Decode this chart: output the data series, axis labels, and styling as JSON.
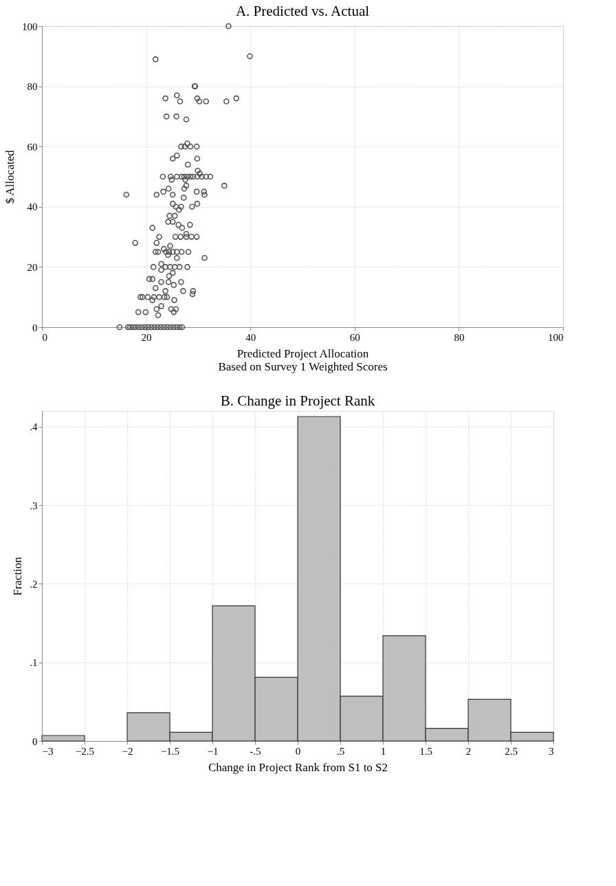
{
  "chart_data": [
    {
      "type": "scatter",
      "title": "A. Predicted vs. Actual",
      "xlabel": "Predicted Project Allocation\nBased on Survey 1 Weighted Scores",
      "ylabel": "$ Allocated",
      "marker": "circle",
      "grid": true,
      "xlim": [
        0,
        100
      ],
      "xticks": [
        0,
        20,
        40,
        60,
        80,
        100
      ],
      "ylim": [
        0,
        100
      ],
      "yticks": [
        0,
        20,
        40,
        60,
        80,
        100
      ],
      "series": [
        {
          "color": "#555555",
          "x": [
            35.8,
            21.8,
            39.9,
            29.3,
            29.4,
            23.7,
            25.9,
            26.5,
            29.8,
            30.2,
            31.5,
            35.4,
            37.3,
            23.9,
            25.8,
            27.7,
            26.7,
            27.4,
            28.5,
            29.7,
            27.9,
            25.1,
            25.9,
            29.8,
            28.0,
            29.9,
            30.3,
            23.2,
            24.7,
            25.9,
            26.8,
            27.3,
            27.9,
            28.5,
            29.0,
            29.8,
            30.7,
            31.5,
            32.3,
            24.9,
            27.5,
            35.0,
            27.7,
            27.3,
            24.3,
            23.3,
            29.7,
            31.1,
            16.2,
            22.0,
            25.1,
            31.2,
            27.2,
            25.1,
            25.7,
            26.7,
            26.3,
            28.8,
            29.8,
            24.5,
            25.5,
            24.2,
            25.1,
            26.2,
            26.9,
            21.2,
            28.4,
            27.7,
            22.5,
            25.6,
            26.6,
            27.7,
            28.7,
            29.7,
            17.9,
            22.0,
            23.4,
            24.6,
            21.8,
            22.3,
            23.8,
            24.4,
            25.1,
            25.9,
            26.8,
            28.1,
            31.2,
            24.2,
            25.9,
            22.9,
            21.4,
            23.7,
            24.6,
            25.5,
            26.4,
            27.9,
            22.9,
            25.1,
            20.6,
            21.2,
            24.4,
            22.9,
            24.3,
            25.3,
            26.7,
            21.8,
            23.7,
            27.1,
            29.0,
            28.9,
            18.9,
            19.3,
            20.3,
            21.5,
            22.5,
            23.5,
            24.0,
            21.2,
            25.4,
            22.9,
            22.0,
            24.8,
            25.7,
            25.3,
            18.5,
            19.9,
            22.3,
            14.9,
            16.5,
            16.9,
            17.5,
            18.0,
            18.6,
            19.2,
            19.8,
            20.4,
            21.0,
            21.6,
            22.2,
            22.8,
            23.4,
            24.0,
            24.6,
            25.2,
            25.8,
            26.4,
            26.9
          ],
          "values": [
            100,
            89,
            90,
            80,
            80,
            76,
            77,
            75,
            76,
            75,
            75,
            75,
            76,
            70,
            70,
            69,
            60,
            60,
            60,
            60,
            61,
            56,
            57,
            56,
            54,
            52,
            51,
            50,
            50,
            50,
            50,
            50,
            50,
            50,
            50,
            50,
            50,
            50,
            50,
            49,
            49,
            47,
            47,
            46,
            46,
            45,
            45,
            45,
            44,
            44,
            44,
            44,
            43,
            41,
            40,
            40,
            39,
            40,
            41,
            37,
            37,
            35,
            35,
            34,
            33,
            33,
            34,
            31,
            30,
            30,
            30,
            30,
            30,
            30,
            28,
            28,
            26,
            27,
            25,
            25,
            25,
            25,
            25,
            25,
            25,
            25,
            23,
            24,
            23,
            21,
            20,
            20,
            20,
            20,
            20,
            20,
            19,
            18,
            16,
            16,
            17,
            15,
            15,
            14,
            15,
            13,
            12,
            12,
            12,
            11,
            10,
            10,
            10,
            10,
            10,
            10,
            10,
            9,
            9,
            7,
            6,
            6,
            6,
            5,
            5,
            5,
            4,
            0,
            0,
            0,
            0,
            0,
            0,
            0,
            0,
            0,
            0,
            0,
            0,
            0,
            0,
            0,
            0,
            0,
            0,
            0,
            0
          ]
        }
      ]
    },
    {
      "type": "histogram",
      "title": "B. Change in Project Rank",
      "xlabel": "Change in Project Rank from S1 to S2",
      "ylabel": "Fraction",
      "grid": true,
      "bins": [
        -3,
        -2.5,
        -2,
        -1.5,
        -1,
        -0.5,
        0,
        0.5,
        1,
        1.5,
        2,
        2.5,
        3
      ],
      "values": [
        0.007,
        0,
        0.036,
        0.011,
        0.172,
        0.081,
        0.413,
        0.057,
        0.134,
        0.016,
        0.053,
        0.011
      ],
      "color": "#bfbfbf",
      "xlim": [
        -3,
        3
      ],
      "xticks": [
        -3,
        -2.5,
        -2,
        -1.5,
        -1,
        {
          "value": -0.5,
          "label": "-.5"
        },
        0,
        {
          "value": 0.5,
          "label": ".5"
        },
        1,
        1.5,
        2,
        2.5,
        3
      ],
      "ylim": [
        0,
        0.42
      ],
      "yticks": [
        0,
        {
          "value": 0.1,
          "label": ".1"
        },
        {
          "value": 0.2,
          "label": ".2"
        },
        {
          "value": 0.3,
          "label": ".3"
        },
        {
          "value": 0.4,
          "label": ".4"
        }
      ]
    }
  ]
}
